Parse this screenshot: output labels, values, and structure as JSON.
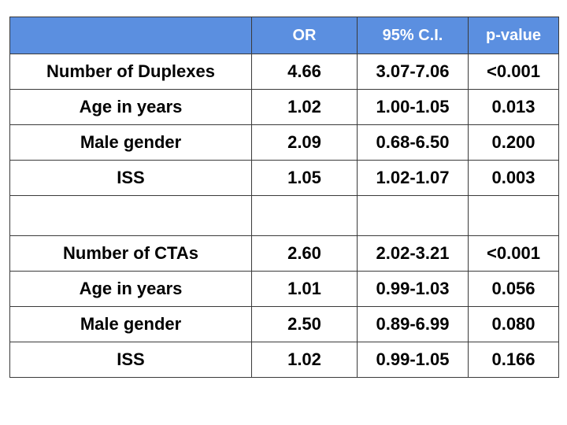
{
  "table": {
    "headers": [
      "",
      "OR",
      "95% C.I.",
      "p-value"
    ],
    "group1": [
      {
        "label": "Number of Duplexes",
        "or": "4.66",
        "ci": "3.07-7.06",
        "p": "<0.001"
      },
      {
        "label": "Age in years",
        "or": "1.02",
        "ci": "1.00-1.05",
        "p": "0.013"
      },
      {
        "label": "Male gender",
        "or": "2.09",
        "ci": "0.68-6.50",
        "p": "0.200"
      },
      {
        "label": "ISS",
        "or": "1.05",
        "ci": "1.02-1.07",
        "p": "0.003"
      }
    ],
    "group2": [
      {
        "label": "Number of CTAs",
        "or": "2.60",
        "ci": "2.02-3.21",
        "p": "<0.001"
      },
      {
        "label": "Age in years",
        "or": "1.01",
        "ci": "0.99-1.03",
        "p": "0.056"
      },
      {
        "label": "Male gender",
        "or": "2.50",
        "ci": "0.89-6.99",
        "p": "0.080"
      },
      {
        "label": "ISS",
        "or": "1.02",
        "ci": "0.99-1.05",
        "p": "0.166"
      }
    ]
  },
  "colors": {
    "header_background": "#5b8fe0",
    "header_text": "#ffffff",
    "border": "#3a3a3a"
  }
}
